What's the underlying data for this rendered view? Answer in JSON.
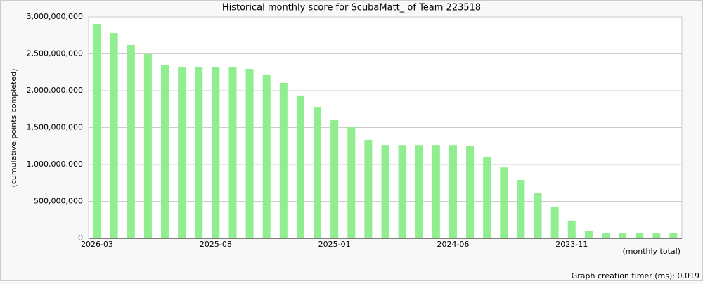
{
  "chart_data": {
    "type": "bar",
    "title": "Historical monthly score for ScubaMatt_ of Team 223518",
    "y_label": "(cumulative points completed)",
    "x_note": "(monthly total)",
    "footer": "Graph creation timer (ms): 0.019",
    "categories": [
      "2026-03",
      null,
      null,
      null,
      null,
      null,
      null,
      "2025-08",
      null,
      null,
      null,
      null,
      null,
      null,
      "2025-01",
      null,
      null,
      null,
      null,
      null,
      null,
      "2024-06",
      null,
      null,
      null,
      null,
      null,
      null,
      "2023-11",
      null,
      null,
      null,
      null,
      null,
      null
    ],
    "values": [
      2905000000,
      2780000000,
      2620000000,
      2495000000,
      2345000000,
      2315000000,
      2315000000,
      2315000000,
      2315000000,
      2295000000,
      2220000000,
      2105000000,
      1935000000,
      1780000000,
      1610000000,
      1505000000,
      1335000000,
      1265000000,
      1265000000,
      1265000000,
      1265000000,
      1265000000,
      1250000000,
      1105000000,
      960000000,
      790000000,
      610000000,
      430000000,
      240000000,
      105000000,
      75000000,
      75000000,
      75000000,
      75000000,
      75000000
    ],
    "color": "#90ee90",
    "ylim": [
      0,
      3000000000
    ],
    "yticks": [
      0,
      {
        "value": 500000000,
        "label": "500,000,000"
      },
      {
        "value": 1000000000,
        "label": "1,000,000,000"
      },
      {
        "value": 1500000000,
        "label": "1,500,000,000"
      },
      {
        "value": 2000000000,
        "label": "2,000,000,000"
      },
      {
        "value": 2500000000,
        "label": "2,500,000,000"
      },
      {
        "value": 3000000000,
        "label": "3,000,000,000"
      }
    ],
    "grid": true
  }
}
